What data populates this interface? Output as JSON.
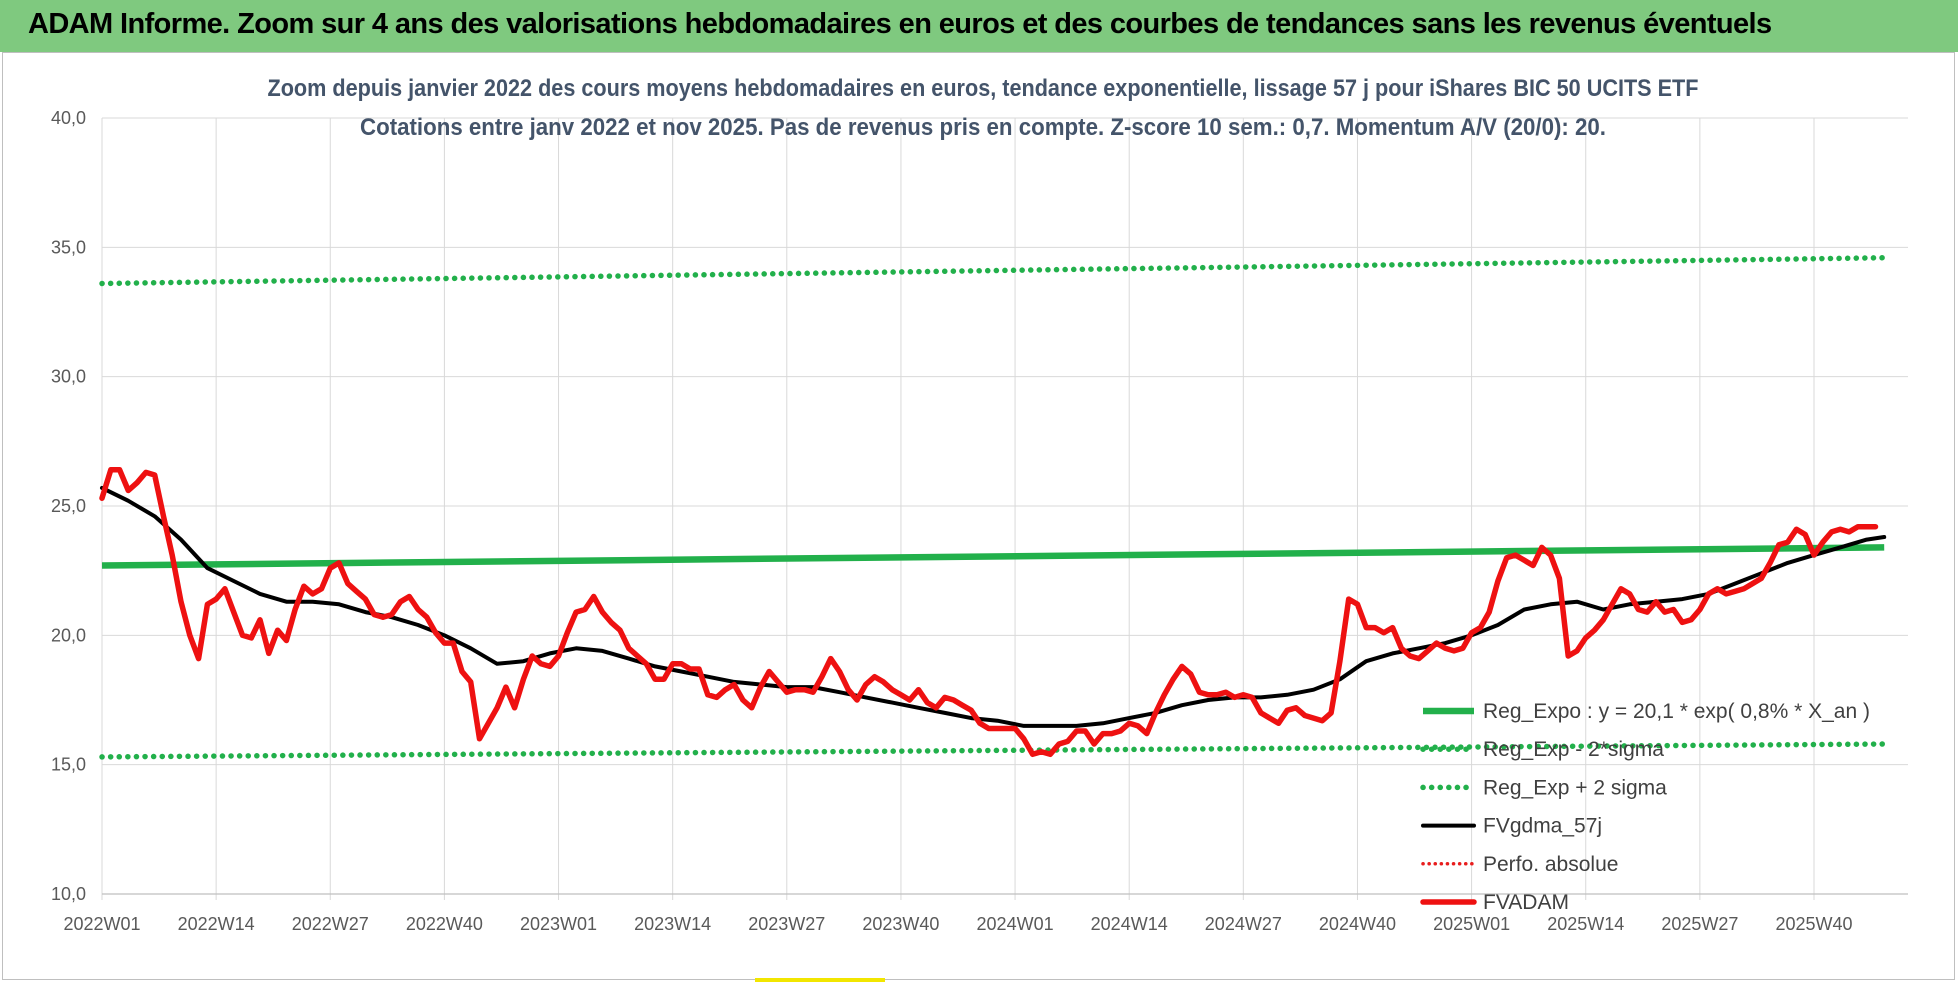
{
  "banner": {
    "title": "ADAM Informe. Zoom sur 4 ans des valorisations hebdomadaires en euros et des courbes de tendances sans les revenus éventuels"
  },
  "colors": {
    "banner_bg": "#7fc97f",
    "reg_expo": "#22b04b",
    "sigma": "#22b04b",
    "fvgdma": "#000000",
    "perfo": "#e81d1d",
    "fvadam": "#ee1111",
    "title": "#44546a"
  },
  "chart_data": {
    "type": "line",
    "title_lines": [
      "Zoom depuis janvier 2022 des cours moyens hebdomadaires en euros, tendance exponentielle, lissage 57 j pour iShares BIC 50 UCITS ETF",
      "Cotations entre janv 2022 et nov 2025. Pas de revenus pris en compte. Z-score 10 sem.: 0,7. Momentum A/V (20/0): 20."
    ],
    "ylim": [
      10,
      40
    ],
    "yticks": [
      "10,0",
      "15,0",
      "20,0",
      "25,0",
      "30,0",
      "35,0",
      "40,0"
    ],
    "xlim": [
      0,
      203
    ],
    "xtick_labels": [
      "2022W01",
      "2022W14",
      "2022W27",
      "2022W40",
      "2023W01",
      "2023W14",
      "2023W27",
      "2023W40",
      "2024W01",
      "2024W14",
      "2024W27",
      "2024W40",
      "2025W01",
      "2025W14",
      "2025W27",
      "2025W40"
    ],
    "xtick_positions": [
      0,
      13,
      26,
      39,
      52,
      65,
      78,
      91,
      104,
      117,
      130,
      143,
      156,
      169,
      182,
      195
    ],
    "legend_position": "right",
    "series": [
      {
        "name": "Reg_Expo : y = 20,1 * exp( 0,8% *  X_an )",
        "style": "thick",
        "points": [
          [
            0,
            22.7
          ],
          [
            203,
            23.4
          ]
        ]
      },
      {
        "name": "Reg_Exp - 2*sigma",
        "style": "dotted",
        "points": [
          [
            0,
            15.3
          ],
          [
            203,
            15.8
          ]
        ]
      },
      {
        "name": "Reg_Exp + 2 sigma",
        "style": "dotted",
        "points": [
          [
            0,
            33.6
          ],
          [
            203,
            34.6
          ]
        ]
      },
      {
        "name": "FVgdma_57j",
        "style": "solid",
        "points": [
          [
            0,
            25.7
          ],
          [
            3,
            25.2
          ],
          [
            6,
            24.6
          ],
          [
            9,
            23.7
          ],
          [
            12,
            22.6
          ],
          [
            15,
            22.1
          ],
          [
            18,
            21.6
          ],
          [
            21,
            21.3
          ],
          [
            24,
            21.3
          ],
          [
            27,
            21.2
          ],
          [
            30,
            20.9
          ],
          [
            33,
            20.7
          ],
          [
            36,
            20.4
          ],
          [
            39,
            20.0
          ],
          [
            42,
            19.5
          ],
          [
            45,
            18.9
          ],
          [
            48,
            19.0
          ],
          [
            51,
            19.3
          ],
          [
            54,
            19.5
          ],
          [
            57,
            19.4
          ],
          [
            60,
            19.1
          ],
          [
            63,
            18.8
          ],
          [
            66,
            18.6
          ],
          [
            69,
            18.4
          ],
          [
            72,
            18.2
          ],
          [
            75,
            18.1
          ],
          [
            78,
            18.0
          ],
          [
            81,
            18.0
          ],
          [
            84,
            17.8
          ],
          [
            87,
            17.6
          ],
          [
            90,
            17.4
          ],
          [
            93,
            17.2
          ],
          [
            96,
            17.0
          ],
          [
            99,
            16.8
          ],
          [
            102,
            16.7
          ],
          [
            105,
            16.5
          ],
          [
            108,
            16.5
          ],
          [
            111,
            16.5
          ],
          [
            114,
            16.6
          ],
          [
            117,
            16.8
          ],
          [
            120,
            17.0
          ],
          [
            123,
            17.3
          ],
          [
            126,
            17.5
          ],
          [
            129,
            17.6
          ],
          [
            132,
            17.6
          ],
          [
            135,
            17.7
          ],
          [
            138,
            17.9
          ],
          [
            141,
            18.3
          ],
          [
            144,
            19.0
          ],
          [
            147,
            19.3
          ],
          [
            150,
            19.5
          ],
          [
            153,
            19.7
          ],
          [
            156,
            20.0
          ],
          [
            159,
            20.4
          ],
          [
            162,
            21.0
          ],
          [
            165,
            21.2
          ],
          [
            168,
            21.3
          ],
          [
            171,
            21.0
          ],
          [
            174,
            21.2
          ],
          [
            177,
            21.3
          ],
          [
            180,
            21.4
          ],
          [
            183,
            21.6
          ],
          [
            186,
            22.0
          ],
          [
            189,
            22.4
          ],
          [
            192,
            22.8
          ],
          [
            195,
            23.1
          ],
          [
            198,
            23.4
          ],
          [
            201,
            23.7
          ],
          [
            203,
            23.8
          ]
        ]
      },
      {
        "name": "Perfo. absolue",
        "style": "dotted",
        "points": []
      },
      {
        "name": "FVADAM",
        "style": "thick",
        "points": [
          [
            0,
            25.3
          ],
          [
            1,
            26.4
          ],
          [
            2,
            26.4
          ],
          [
            3,
            25.6
          ],
          [
            4,
            25.9
          ],
          [
            5,
            26.3
          ],
          [
            6,
            26.2
          ],
          [
            7,
            24.6
          ],
          [
            8,
            23.1
          ],
          [
            9,
            21.3
          ],
          [
            10,
            20.0
          ],
          [
            11,
            19.1
          ],
          [
            12,
            21.2
          ],
          [
            13,
            21.4
          ],
          [
            14,
            21.8
          ],
          [
            15,
            20.9
          ],
          [
            16,
            20.0
          ],
          [
            17,
            19.9
          ],
          [
            18,
            20.6
          ],
          [
            19,
            19.3
          ],
          [
            20,
            20.2
          ],
          [
            21,
            19.8
          ],
          [
            22,
            21.0
          ],
          [
            23,
            21.9
          ],
          [
            24,
            21.6
          ],
          [
            25,
            21.8
          ],
          [
            26,
            22.6
          ],
          [
            27,
            22.8
          ],
          [
            28,
            22.0
          ],
          [
            29,
            21.7
          ],
          [
            30,
            21.4
          ],
          [
            31,
            20.8
          ],
          [
            32,
            20.7
          ],
          [
            33,
            20.8
          ],
          [
            34,
            21.3
          ],
          [
            35,
            21.5
          ],
          [
            36,
            21.0
          ],
          [
            37,
            20.7
          ],
          [
            38,
            20.1
          ],
          [
            39,
            19.7
          ],
          [
            40,
            19.7
          ],
          [
            41,
            18.6
          ],
          [
            42,
            18.2
          ],
          [
            43,
            16.0
          ],
          [
            44,
            16.6
          ],
          [
            45,
            17.2
          ],
          [
            46,
            18.0
          ],
          [
            47,
            17.2
          ],
          [
            48,
            18.3
          ],
          [
            49,
            19.2
          ],
          [
            50,
            18.9
          ],
          [
            51,
            18.8
          ],
          [
            52,
            19.2
          ],
          [
            53,
            20.1
          ],
          [
            54,
            20.9
          ],
          [
            55,
            21.0
          ],
          [
            56,
            21.5
          ],
          [
            57,
            20.9
          ],
          [
            58,
            20.5
          ],
          [
            59,
            20.2
          ],
          [
            60,
            19.5
          ],
          [
            61,
            19.2
          ],
          [
            62,
            18.9
          ],
          [
            63,
            18.3
          ],
          [
            64,
            18.3
          ],
          [
            65,
            18.9
          ],
          [
            66,
            18.9
          ],
          [
            67,
            18.7
          ],
          [
            68,
            18.7
          ],
          [
            69,
            17.7
          ],
          [
            70,
            17.6
          ],
          [
            71,
            17.9
          ],
          [
            72,
            18.1
          ],
          [
            73,
            17.5
          ],
          [
            74,
            17.2
          ],
          [
            75,
            18.0
          ],
          [
            76,
            18.6
          ],
          [
            77,
            18.2
          ],
          [
            78,
            17.8
          ],
          [
            79,
            17.9
          ],
          [
            80,
            17.9
          ],
          [
            81,
            17.8
          ],
          [
            82,
            18.4
          ],
          [
            83,
            19.1
          ],
          [
            84,
            18.6
          ],
          [
            85,
            17.9
          ],
          [
            86,
            17.5
          ],
          [
            87,
            18.1
          ],
          [
            88,
            18.4
          ],
          [
            89,
            18.2
          ],
          [
            90,
            17.9
          ],
          [
            91,
            17.7
          ],
          [
            92,
            17.5
          ],
          [
            93,
            17.9
          ],
          [
            94,
            17.4
          ],
          [
            95,
            17.2
          ],
          [
            96,
            17.6
          ],
          [
            97,
            17.5
          ],
          [
            98,
            17.3
          ],
          [
            99,
            17.1
          ],
          [
            100,
            16.6
          ],
          [
            101,
            16.4
          ],
          [
            102,
            16.4
          ],
          [
            103,
            16.4
          ],
          [
            104,
            16.4
          ],
          [
            105,
            16.0
          ],
          [
            106,
            15.4
          ],
          [
            107,
            15.5
          ],
          [
            108,
            15.4
          ],
          [
            109,
            15.8
          ],
          [
            110,
            15.9
          ],
          [
            111,
            16.3
          ],
          [
            112,
            16.3
          ],
          [
            113,
            15.8
          ],
          [
            114,
            16.2
          ],
          [
            115,
            16.2
          ],
          [
            116,
            16.3
          ],
          [
            117,
            16.6
          ],
          [
            118,
            16.5
          ],
          [
            119,
            16.2
          ],
          [
            120,
            17.0
          ],
          [
            121,
            17.7
          ],
          [
            122,
            18.3
          ],
          [
            123,
            18.8
          ],
          [
            124,
            18.5
          ],
          [
            125,
            17.8
          ],
          [
            126,
            17.7
          ],
          [
            127,
            17.7
          ],
          [
            128,
            17.8
          ],
          [
            129,
            17.6
          ],
          [
            130,
            17.7
          ],
          [
            131,
            17.6
          ],
          [
            132,
            17.0
          ],
          [
            133,
            16.8
          ],
          [
            134,
            16.6
          ],
          [
            135,
            17.1
          ],
          [
            136,
            17.2
          ],
          [
            137,
            16.9
          ],
          [
            138,
            16.8
          ],
          [
            139,
            16.7
          ],
          [
            140,
            17.0
          ],
          [
            141,
            19.0
          ],
          [
            142,
            21.4
          ],
          [
            143,
            21.2
          ],
          [
            144,
            20.3
          ],
          [
            145,
            20.3
          ],
          [
            146,
            20.1
          ],
          [
            147,
            20.3
          ],
          [
            148,
            19.5
          ],
          [
            149,
            19.2
          ],
          [
            150,
            19.1
          ],
          [
            151,
            19.4
          ],
          [
            152,
            19.7
          ],
          [
            153,
            19.5
          ],
          [
            154,
            19.4
          ],
          [
            155,
            19.5
          ],
          [
            156,
            20.1
          ],
          [
            157,
            20.3
          ],
          [
            158,
            20.9
          ],
          [
            159,
            22.1
          ],
          [
            160,
            23.0
          ],
          [
            161,
            23.1
          ],
          [
            162,
            22.9
          ],
          [
            163,
            22.7
          ],
          [
            164,
            23.4
          ],
          [
            165,
            23.1
          ],
          [
            166,
            22.2
          ],
          [
            167,
            19.2
          ],
          [
            168,
            19.4
          ],
          [
            169,
            19.9
          ],
          [
            170,
            20.2
          ],
          [
            171,
            20.6
          ],
          [
            172,
            21.2
          ],
          [
            173,
            21.8
          ],
          [
            174,
            21.6
          ],
          [
            175,
            21.0
          ],
          [
            176,
            20.9
          ],
          [
            177,
            21.3
          ],
          [
            178,
            20.9
          ],
          [
            179,
            21.0
          ],
          [
            180,
            20.5
          ],
          [
            181,
            20.6
          ],
          [
            182,
            21.0
          ],
          [
            183,
            21.6
          ],
          [
            184,
            21.8
          ],
          [
            185,
            21.6
          ],
          [
            186,
            21.7
          ],
          [
            187,
            21.8
          ],
          [
            188,
            22.0
          ],
          [
            189,
            22.2
          ],
          [
            190,
            22.8
          ],
          [
            191,
            23.5
          ],
          [
            192,
            23.6
          ],
          [
            193,
            24.1
          ],
          [
            194,
            23.9
          ],
          [
            195,
            23.1
          ],
          [
            196,
            23.6
          ],
          [
            197,
            24.0
          ],
          [
            198,
            24.1
          ],
          [
            199,
            24.0
          ],
          [
            200,
            24.2
          ],
          [
            201,
            24.2
          ],
          [
            202,
            24.2
          ]
        ]
      }
    ]
  }
}
